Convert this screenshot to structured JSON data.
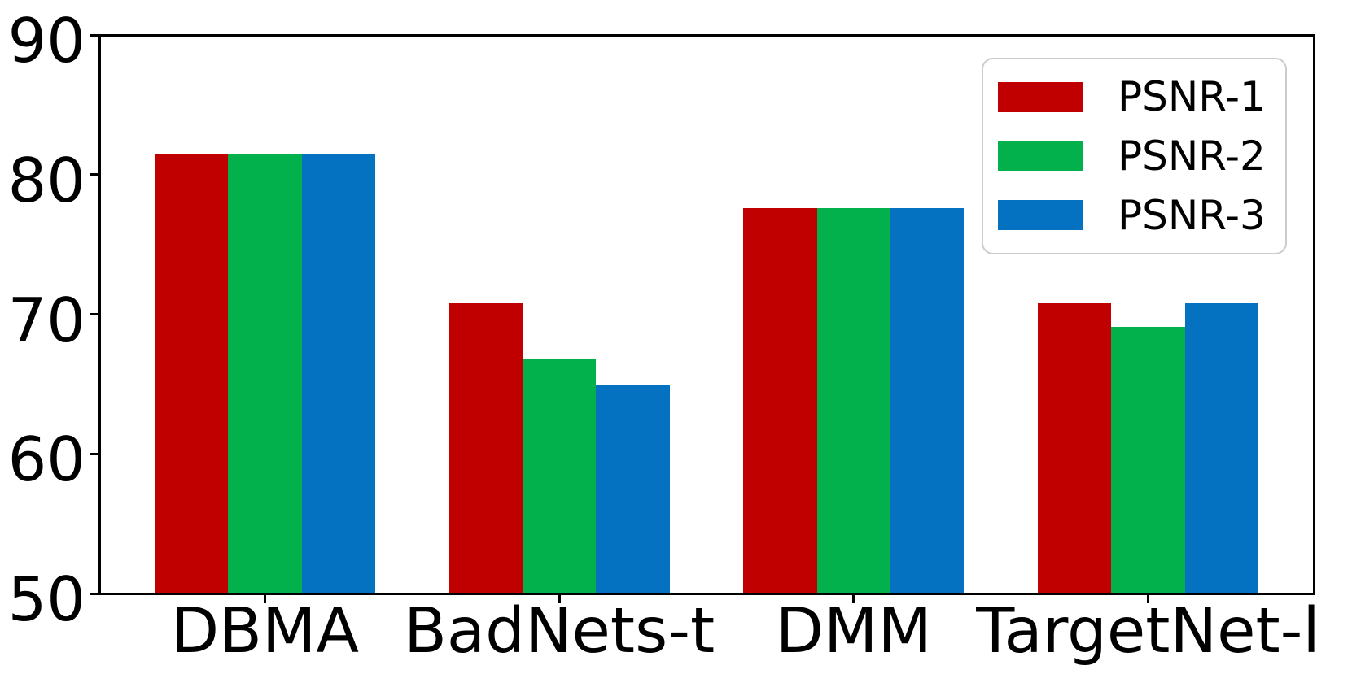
{
  "figure": {
    "background": "#ffffff",
    "axis_color": "#000000",
    "legend_border_color": "#cccccc"
  },
  "chart_data": {
    "type": "bar",
    "title": "",
    "xlabel": "",
    "ylabel": "",
    "categories": [
      "DBMA",
      "BadNets-t",
      "DMM",
      "TargetNet-l"
    ],
    "series": [
      {
        "name": "PSNR-1",
        "color": "#c00000",
        "values": [
          81.5,
          70.8,
          77.6,
          70.8
        ]
      },
      {
        "name": "PSNR-2",
        "color": "#02b04c",
        "values": [
          81.5,
          66.8,
          77.6,
          69.1
        ]
      },
      {
        "name": "PSNR-3",
        "color": "#0572c1",
        "values": [
          81.5,
          64.9,
          77.6,
          70.8
        ]
      }
    ],
    "ylim": [
      50,
      90
    ],
    "yticks": [
      "50",
      "60",
      "70",
      "80",
      "90"
    ],
    "grid": false,
    "legend_position": "upper right"
  }
}
